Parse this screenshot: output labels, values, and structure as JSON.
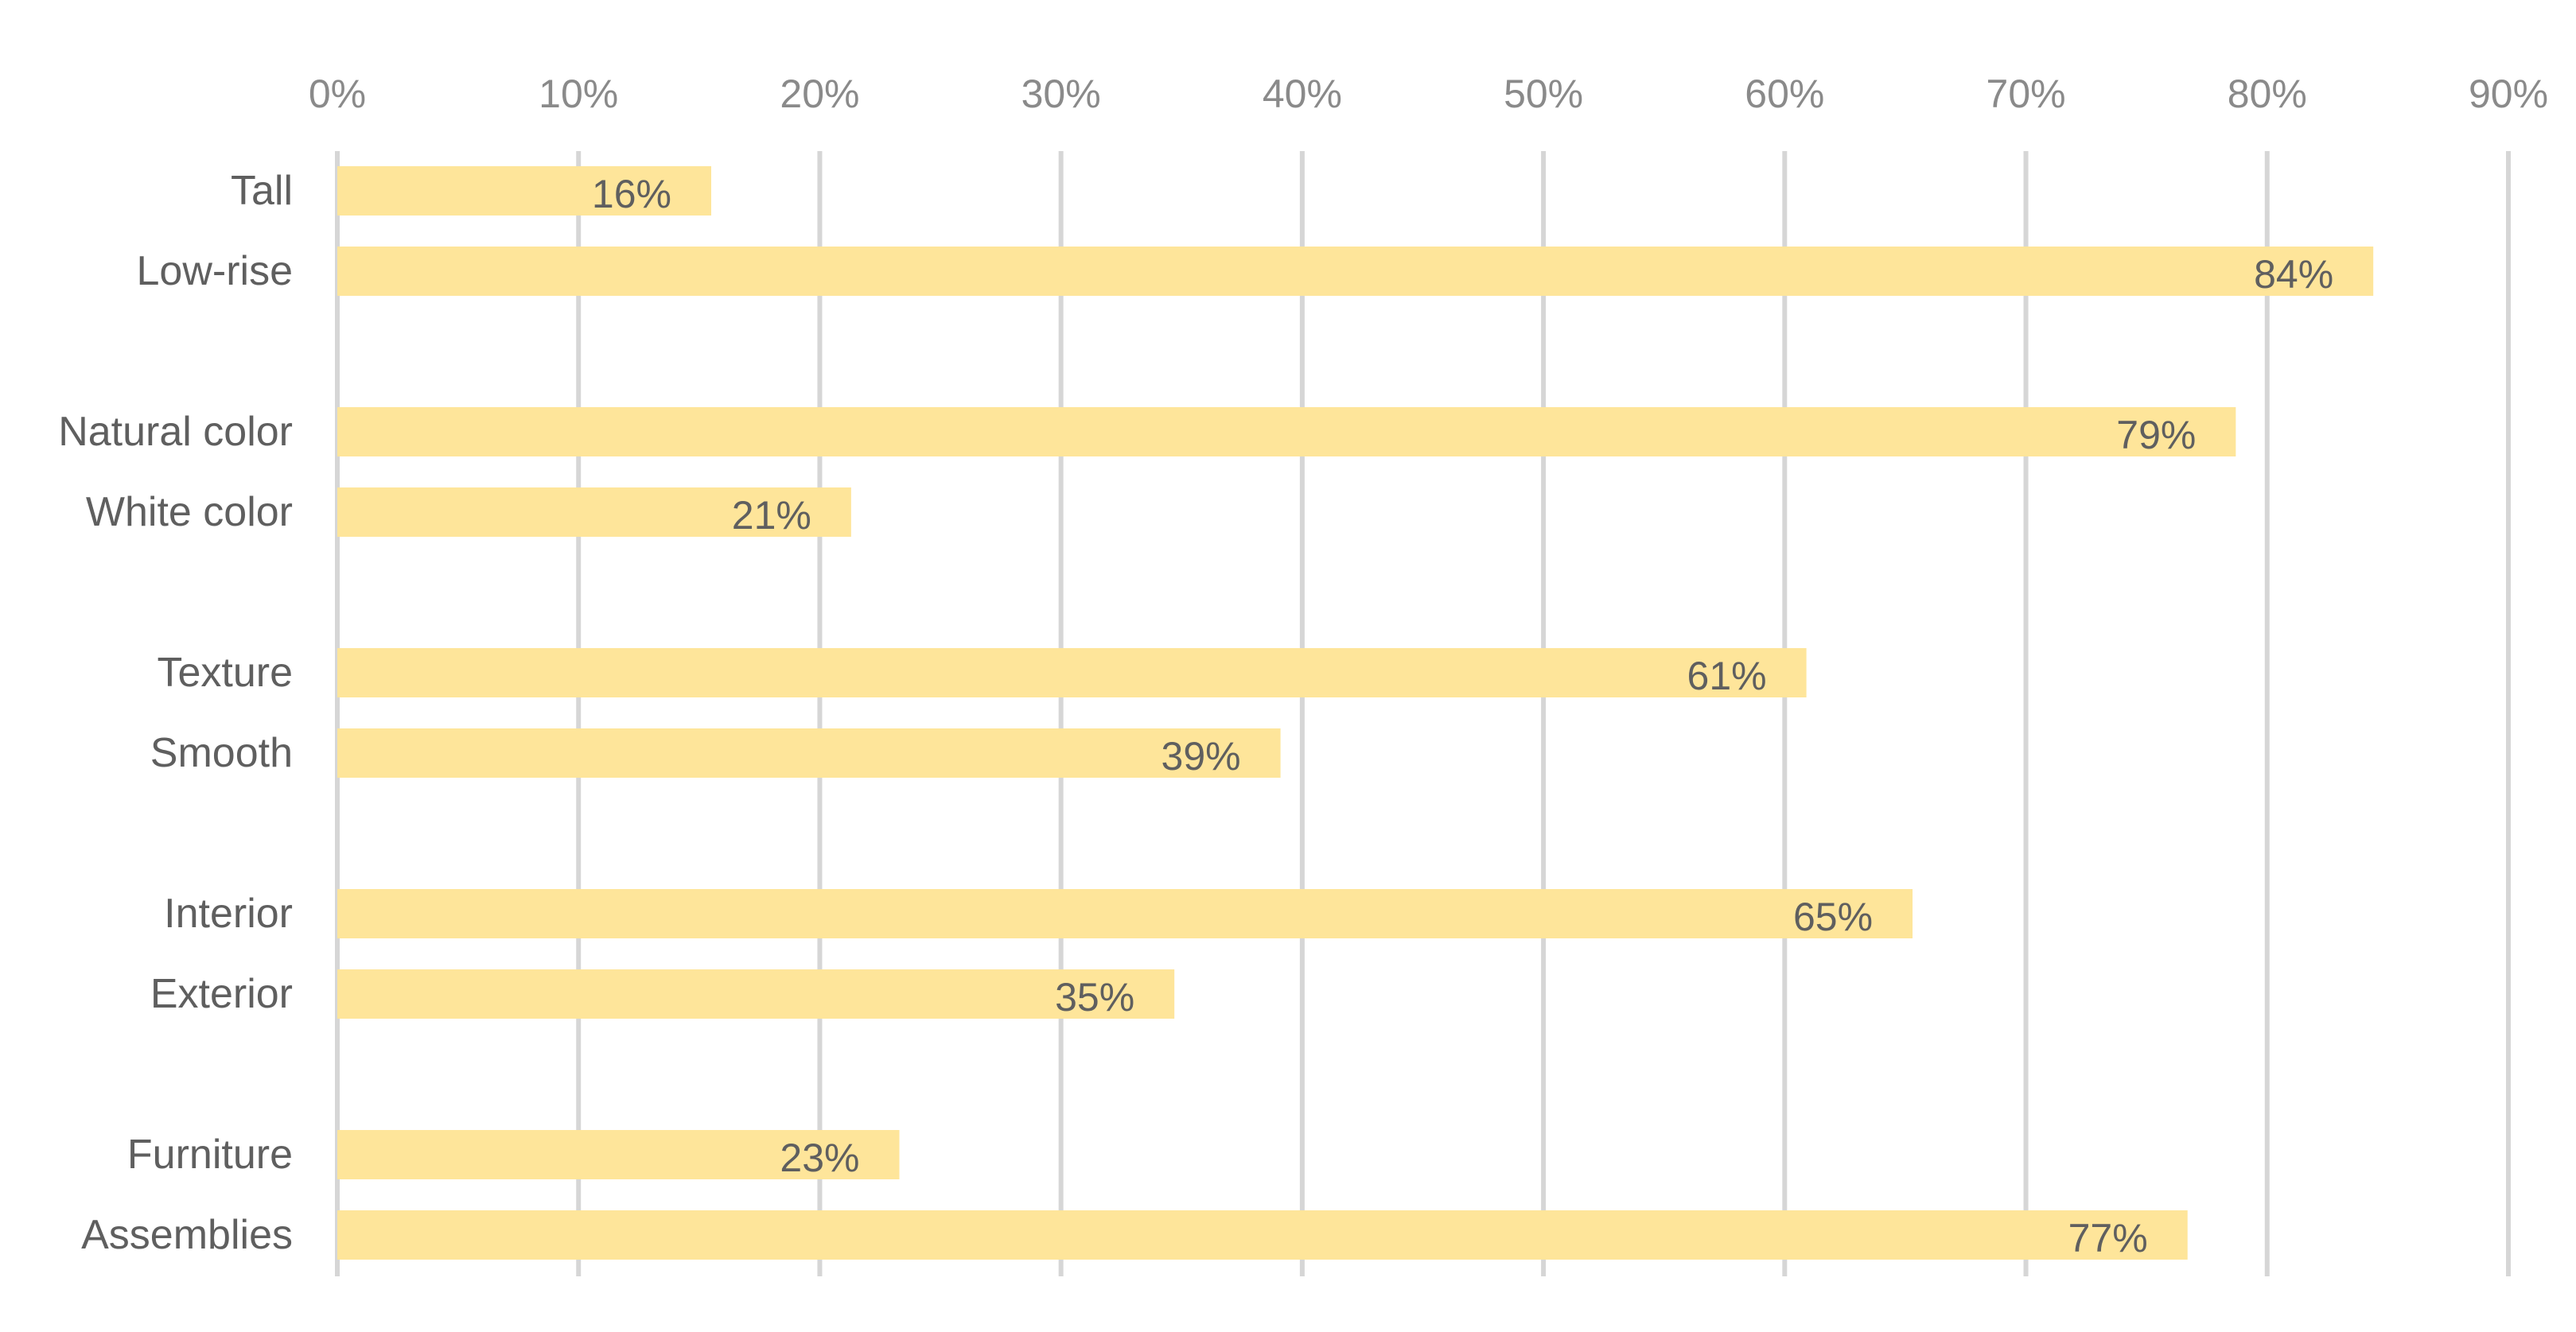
{
  "chart_data": {
    "type": "bar",
    "orientation": "horizontal",
    "title": "",
    "xlabel": "",
    "ylabel": "",
    "xlim": [
      0,
      90
    ],
    "x_ticks": [
      "0%",
      "10%",
      "20%",
      "30%",
      "40%",
      "50%",
      "60%",
      "70%",
      "80%",
      "90%"
    ],
    "x_tick_values": [
      0,
      10,
      20,
      30,
      40,
      50,
      60,
      70,
      80,
      90
    ],
    "grid": "vertical",
    "legend": "none",
    "bar_color": "#fee59a",
    "grid_color": "#d6d6d6",
    "categories": [
      "Tall",
      "Low-rise",
      "Natural color",
      "White color",
      "Texture",
      "Smooth",
      "Interior",
      "Exterior",
      "Furniture",
      "Assemblies"
    ],
    "groups": [
      [
        "Tall",
        "Low-rise"
      ],
      [
        "Natural color",
        "White color"
      ],
      [
        "Texture",
        "Smooth"
      ],
      [
        "Interior",
        "Exterior"
      ],
      [
        "Furniture",
        "Assemblies"
      ]
    ],
    "values": [
      15.5,
      84.4,
      78.7,
      21.3,
      60.9,
      39.1,
      65.3,
      34.7,
      23.3,
      76.7
    ],
    "data_labels": [
      "16%",
      "84%",
      "79%",
      "21%",
      "61%",
      "39%",
      "65%",
      "35%",
      "23%",
      "77%"
    ]
  }
}
